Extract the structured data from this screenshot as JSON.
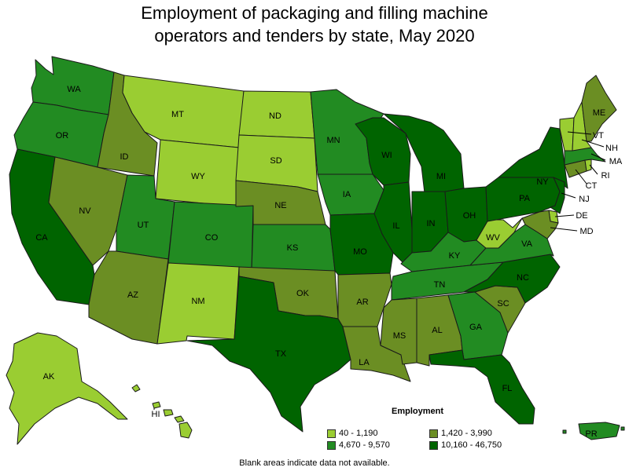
{
  "title_line1": "Employment of packaging and filling machine",
  "title_line2": "operators and tenders by state, May 2020",
  "legend": {
    "title": "Employment",
    "classes": [
      {
        "label": "40 - 1,190",
        "color": "#9acd32"
      },
      {
        "label": "1,420 - 3,990",
        "color": "#6b8e23"
      },
      {
        "label": "4,670 - 9,570",
        "color": "#228b22"
      },
      {
        "label": "10,160 - 46,750",
        "color": "#006400"
      }
    ]
  },
  "footnote": "Blank areas indicate data not available.",
  "states": [
    {
      "abbr": "WA",
      "class": 2
    },
    {
      "abbr": "OR",
      "class": 2
    },
    {
      "abbr": "CA",
      "class": 3
    },
    {
      "abbr": "ID",
      "class": 1
    },
    {
      "abbr": "NV",
      "class": 1
    },
    {
      "abbr": "MT",
      "class": 0
    },
    {
      "abbr": "WY",
      "class": 0
    },
    {
      "abbr": "UT",
      "class": 2
    },
    {
      "abbr": "CO",
      "class": 2
    },
    {
      "abbr": "AZ",
      "class": 1
    },
    {
      "abbr": "NM",
      "class": 0
    },
    {
      "abbr": "ND",
      "class": 0
    },
    {
      "abbr": "SD",
      "class": 0
    },
    {
      "abbr": "NE",
      "class": 1
    },
    {
      "abbr": "KS",
      "class": 2
    },
    {
      "abbr": "OK",
      "class": 1
    },
    {
      "abbr": "TX",
      "class": 3
    },
    {
      "abbr": "MN",
      "class": 2
    },
    {
      "abbr": "IA",
      "class": 2
    },
    {
      "abbr": "MO",
      "class": 3
    },
    {
      "abbr": "AR",
      "class": 1
    },
    {
      "abbr": "LA",
      "class": 1
    },
    {
      "abbr": "WI",
      "class": 3
    },
    {
      "abbr": "IL",
      "class": 3
    },
    {
      "abbr": "MI",
      "class": 3
    },
    {
      "abbr": "IN",
      "class": 3
    },
    {
      "abbr": "OH",
      "class": 3
    },
    {
      "abbr": "KY",
      "class": 2
    },
    {
      "abbr": "TN",
      "class": 2
    },
    {
      "abbr": "MS",
      "class": 1
    },
    {
      "abbr": "AL",
      "class": 1
    },
    {
      "abbr": "GA",
      "class": 2
    },
    {
      "abbr": "FL",
      "class": 3
    },
    {
      "abbr": "SC",
      "class": 1
    },
    {
      "abbr": "NC",
      "class": 3
    },
    {
      "abbr": "VA",
      "class": 2
    },
    {
      "abbr": "WV",
      "class": 0
    },
    {
      "abbr": "PA",
      "class": 3
    },
    {
      "abbr": "NY",
      "class": 3
    },
    {
      "abbr": "VT",
      "class": 0
    },
    {
      "abbr": "NH",
      "class": 0
    },
    {
      "abbr": "ME",
      "class": 1
    },
    {
      "abbr": "MA",
      "class": 2
    },
    {
      "abbr": "RI",
      "class": 0
    },
    {
      "abbr": "CT",
      "class": 1
    },
    {
      "abbr": "NJ",
      "class": 3
    },
    {
      "abbr": "DE",
      "class": 0
    },
    {
      "abbr": "MD",
      "class": 1
    },
    {
      "abbr": "AK",
      "class": 0
    },
    {
      "abbr": "HI",
      "class": 0
    },
    {
      "abbr": "PR",
      "class": 2
    }
  ]
}
